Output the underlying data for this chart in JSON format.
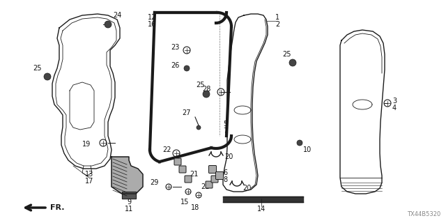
{
  "bg_color": "#ffffff",
  "diagram_code": "TX44B5320",
  "line_color": "#1a1a1a",
  "lw_main": 1.0,
  "lw_seal": 3.0,
  "lw_thin": 0.6
}
